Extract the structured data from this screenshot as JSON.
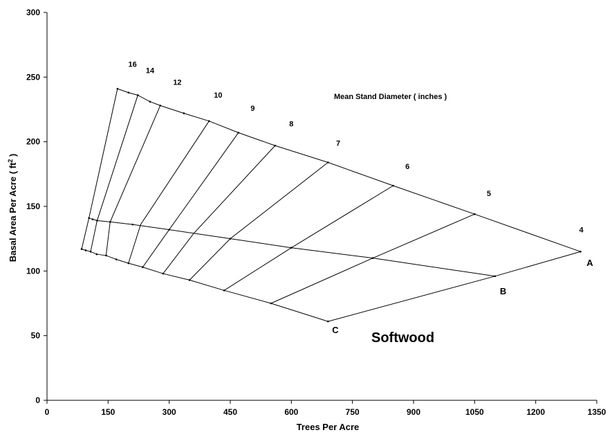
{
  "chart_data": {
    "type": "line",
    "xlabel": "Trees Per Acre",
    "ylabel_main": "Basal Area Per Acre (  ft",
    "ylabel_sup": "2",
    "ylabel_end": " )",
    "xlim": [
      0,
      1350
    ],
    "ylim": [
      0,
      300
    ],
    "xticks": [
      "0",
      "150",
      "300",
      "450",
      "600",
      "750",
      "900",
      "1050",
      "1200",
      "1350"
    ],
    "yticks": [
      "0",
      "50",
      "100",
      "150",
      "200",
      "250",
      "300"
    ],
    "grid": false,
    "annotations": {
      "diameter_title": "Mean Stand Diameter ( inches )",
      "species_label": "Softwood"
    },
    "series": [
      {
        "name": "A",
        "points": [
          [
            173,
            241
          ],
          [
            200,
            238
          ],
          [
            223,
            236
          ],
          [
            253,
            231
          ],
          [
            278,
            228
          ],
          [
            336,
            222
          ],
          [
            398,
            216
          ],
          [
            470,
            207
          ],
          [
            560,
            197
          ],
          [
            690,
            184
          ],
          [
            850,
            166
          ],
          [
            1050,
            144
          ],
          [
            1310,
            115
          ]
        ]
      },
      {
        "name": "B",
        "points": [
          [
            103,
            141
          ],
          [
            112,
            140
          ],
          [
            123,
            139
          ],
          [
            155,
            138
          ],
          [
            210,
            136
          ],
          [
            300,
            132
          ],
          [
            450,
            125
          ],
          [
            600,
            118
          ],
          [
            800,
            110
          ],
          [
            1100,
            96
          ]
        ]
      },
      {
        "name": "C",
        "points": [
          [
            85,
            117
          ],
          [
            95,
            116
          ],
          [
            107,
            115
          ],
          [
            122,
            113
          ],
          [
            145,
            112
          ],
          [
            170,
            109
          ],
          [
            200,
            106
          ],
          [
            235,
            103
          ],
          [
            285,
            98
          ],
          [
            350,
            93
          ],
          [
            435,
            85
          ],
          [
            550,
            75
          ],
          [
            690,
            61
          ]
        ]
      }
    ],
    "diameter_lines": [
      {
        "label": "16",
        "label_pos": [
          210,
          258
        ],
        "a": [
          173,
          241
        ],
        "b": [
          103,
          141
        ],
        "c": [
          85,
          117
        ]
      },
      {
        "label": "14",
        "label_pos": [
          253,
          253
        ],
        "a": [
          223,
          236
        ],
        "b": [
          123,
          139
        ],
        "c": [
          107,
          115
        ]
      },
      {
        "label": "12",
        "label_pos": [
          320,
          244
        ],
        "a": [
          278,
          228
        ],
        "b": [
          155,
          138
        ],
        "c": [
          145,
          112
        ]
      },
      {
        "label": "10",
        "label_pos": [
          420,
          234
        ],
        "a": [
          398,
          216
        ],
        "b": [
          230,
          136
        ],
        "c": [
          200,
          106
        ]
      },
      {
        "label": "9",
        "label_pos": [
          505,
          224
        ],
        "a": [
          470,
          207
        ],
        "b": [
          300,
          132
        ],
        "c": [
          235,
          103
        ]
      },
      {
        "label": "8",
        "label_pos": [
          600,
          212
        ],
        "a": [
          560,
          197
        ],
        "b": [
          360,
          129
        ],
        "c": [
          285,
          98
        ]
      },
      {
        "label": "7",
        "label_pos": [
          715,
          197
        ],
        "a": [
          690,
          184
        ],
        "b": [
          450,
          125
        ],
        "c": [
          350,
          93
        ]
      },
      {
        "label": "6",
        "label_pos": [
          885,
          179
        ],
        "a": [
          850,
          166
        ],
        "b": [
          600,
          118
        ],
        "c": [
          435,
          85
        ]
      },
      {
        "label": "5",
        "label_pos": [
          1085,
          158
        ],
        "a": [
          1050,
          144
        ],
        "b": [
          800,
          110
        ],
        "c": [
          550,
          75
        ]
      },
      {
        "label": "4",
        "label_pos": [
          1312,
          130
        ],
        "a": [
          1310,
          115
        ],
        "b": [
          1100,
          96
        ],
        "c": [
          690,
          61
        ]
      }
    ],
    "line_end_labels": [
      {
        "label": "A",
        "at": [
          1325,
          104
        ]
      },
      {
        "label": "B",
        "at": [
          1112,
          82
        ]
      },
      {
        "label": "C",
        "at": [
          700,
          52
        ]
      }
    ]
  }
}
